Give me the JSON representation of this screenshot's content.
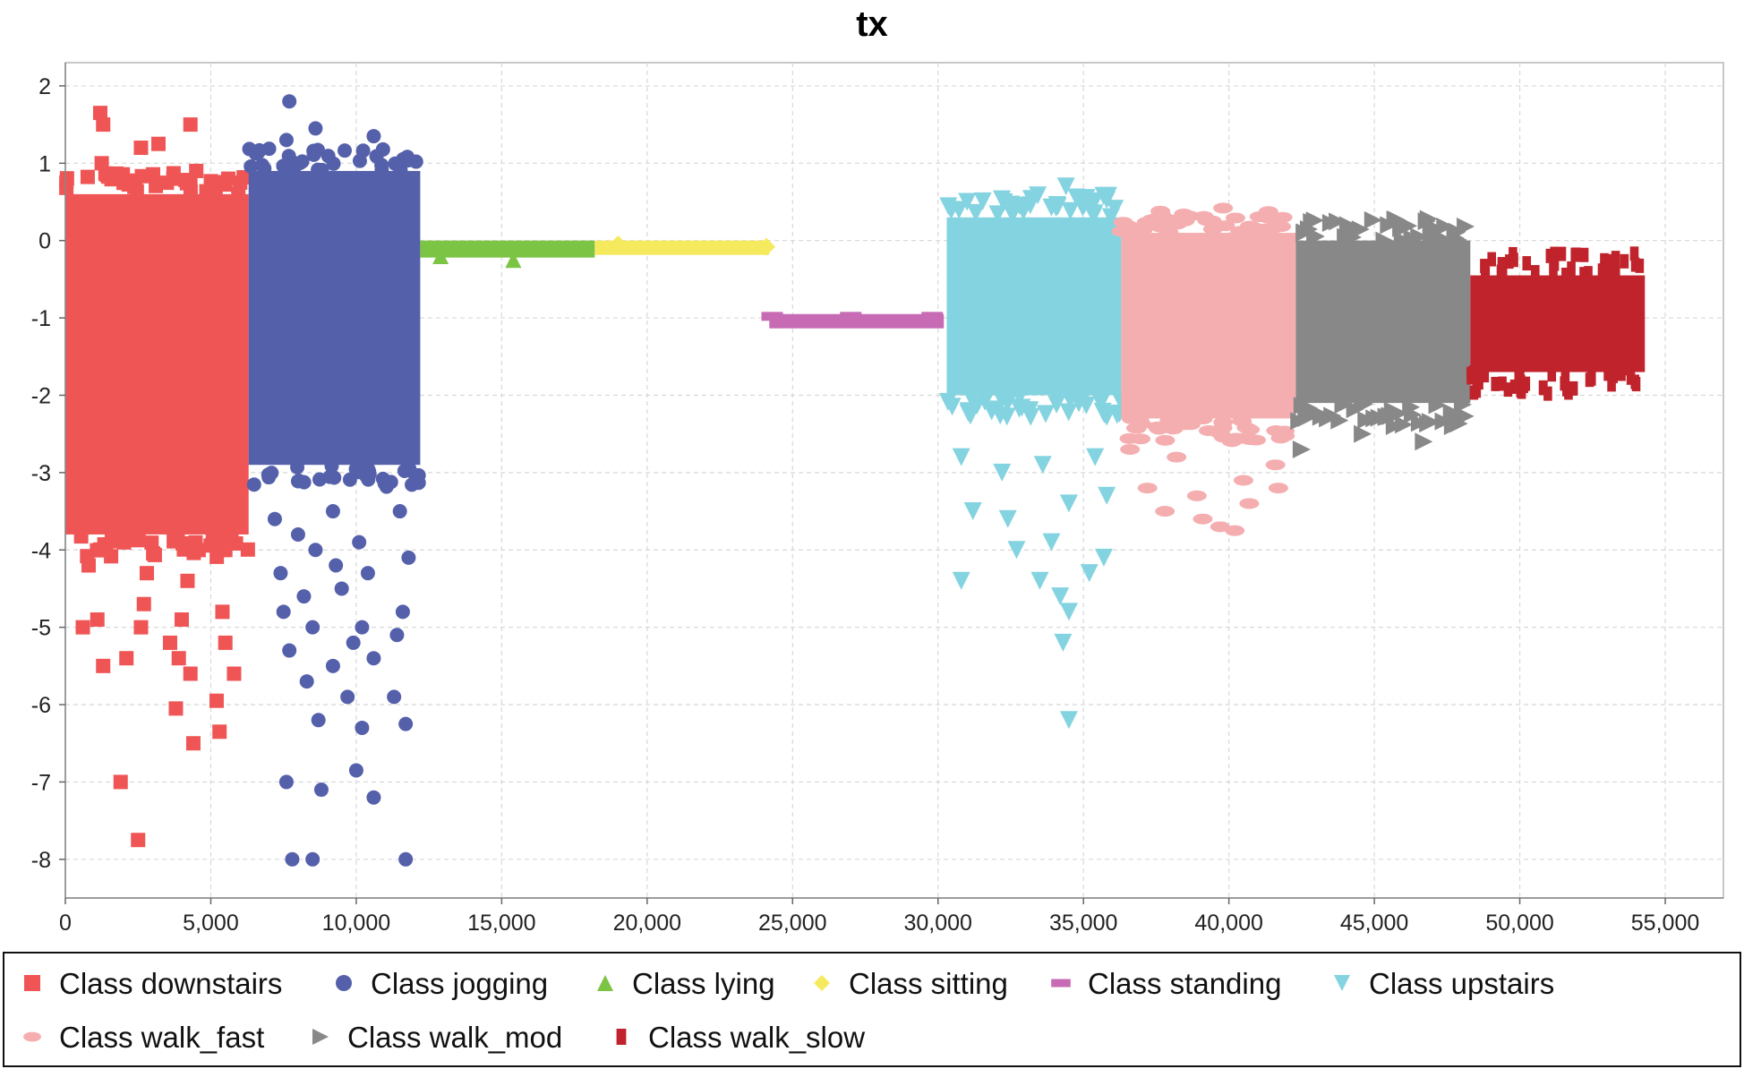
{
  "chart_data": {
    "type": "scatter",
    "title": "tx",
    "xlabel": "",
    "ylabel": "",
    "xlim": [
      0,
      57000
    ],
    "ylim": [
      -8.5,
      2.3
    ],
    "grid": true,
    "legend_position": "bottom",
    "x_ticks": [
      0,
      5000,
      10000,
      15000,
      20000,
      25000,
      30000,
      35000,
      40000,
      45000,
      50000,
      55000
    ],
    "x_tick_labels": [
      "0",
      "5,000",
      "10,000",
      "15,000",
      "20,000",
      "25,000",
      "30,000",
      "35,000",
      "40,000",
      "45,000",
      "50,000",
      "55,000"
    ],
    "y_ticks": [
      2,
      1,
      0,
      -1,
      -2,
      -3,
      -4,
      -5,
      -6,
      -7,
      -8
    ],
    "y_tick_labels": [
      "2",
      "1",
      "0",
      "-1",
      "-2",
      "-3",
      "-4",
      "-5",
      "-6",
      "-7",
      "-8"
    ],
    "series": [
      {
        "name": "Class downstairs",
        "color": "#f05555",
        "marker": "square",
        "x_range": [
          0,
          6300
        ],
        "core_range": [
          -3.8,
          0.6
        ],
        "points": [
          [
            1200,
            1.65
          ],
          [
            1300,
            1.5
          ],
          [
            4300,
            1.5
          ],
          [
            1250,
            1.0
          ],
          [
            2600,
            1.2
          ],
          [
            3200,
            1.25
          ],
          [
            4500,
            0.9
          ],
          [
            5600,
            0.8
          ],
          [
            800,
            -4.2
          ],
          [
            1400,
            -4.0
          ],
          [
            2800,
            -4.3
          ],
          [
            4200,
            -4.4
          ],
          [
            5500,
            -4.0
          ],
          [
            600,
            -5.0
          ],
          [
            1100,
            -4.9
          ],
          [
            2700,
            -4.7
          ],
          [
            4000,
            -4.9
          ],
          [
            5400,
            -4.8
          ],
          [
            1300,
            -5.5
          ],
          [
            2100,
            -5.4
          ],
          [
            2600,
            -5.0
          ],
          [
            3600,
            -5.2
          ],
          [
            3900,
            -5.4
          ],
          [
            4300,
            -5.6
          ],
          [
            5500,
            -5.2
          ],
          [
            5800,
            -5.6
          ],
          [
            3800,
            -6.05
          ],
          [
            4400,
            -6.5
          ],
          [
            5200,
            -5.95
          ],
          [
            5300,
            -6.35
          ],
          [
            1900,
            -7.0
          ],
          [
            2500,
            -7.75
          ]
        ]
      },
      {
        "name": "Class jogging",
        "color": "#5560ab",
        "marker": "circle",
        "x_range": [
          6300,
          12200
        ],
        "core_range": [
          -2.9,
          0.9
        ],
        "points": [
          [
            7700,
            1.8
          ],
          [
            8600,
            1.45
          ],
          [
            10600,
            1.35
          ],
          [
            7600,
            1.3
          ],
          [
            11700,
            1.05
          ],
          [
            6800,
            0.5
          ],
          [
            7200,
            -3.6
          ],
          [
            8000,
            -3.8
          ],
          [
            9200,
            -3.5
          ],
          [
            10100,
            -3.9
          ],
          [
            11500,
            -3.5
          ],
          [
            7400,
            -4.3
          ],
          [
            8600,
            -4.0
          ],
          [
            9300,
            -4.2
          ],
          [
            10400,
            -4.3
          ],
          [
            11800,
            -4.1
          ],
          [
            7500,
            -4.8
          ],
          [
            8200,
            -4.6
          ],
          [
            9500,
            -4.5
          ],
          [
            10200,
            -5.0
          ],
          [
            11600,
            -4.8
          ],
          [
            7700,
            -5.3
          ],
          [
            8500,
            -5.0
          ],
          [
            9900,
            -5.2
          ],
          [
            11400,
            -5.1
          ],
          [
            8300,
            -5.7
          ],
          [
            9200,
            -5.5
          ],
          [
            10600,
            -5.4
          ],
          [
            11300,
            -5.9
          ],
          [
            8700,
            -6.2
          ],
          [
            9700,
            -5.9
          ],
          [
            10200,
            -6.3
          ],
          [
            11700,
            -6.25
          ],
          [
            7600,
            -7.0
          ],
          [
            8800,
            -7.1
          ],
          [
            10000,
            -6.85
          ],
          [
            10600,
            -7.2
          ],
          [
            7800,
            -8.0
          ],
          [
            8500,
            -8.0
          ],
          [
            11700,
            -8.0
          ]
        ]
      },
      {
        "name": "Class lying",
        "color": "#7cc444",
        "marker": "triangle-up",
        "x_range": [
          12200,
          18200
        ],
        "core_range": [
          -0.22,
          0.0
        ],
        "points": [
          [
            15400,
            -0.25
          ],
          [
            12900,
            -0.2
          ],
          [
            14300,
            -0.1
          ]
        ]
      },
      {
        "name": "Class sitting",
        "color": "#f5ea5e",
        "marker": "diamond",
        "x_range": [
          18200,
          24200
        ],
        "core_range": [
          -0.18,
          0.0
        ],
        "points": [
          [
            24100,
            -0.08
          ],
          [
            19000,
            -0.05
          ]
        ]
      },
      {
        "name": "Class standing",
        "color": "#c76bb5",
        "marker": "rect",
        "x_range": [
          24200,
          30200
        ],
        "core_range": [
          -1.02,
          -0.95
        ],
        "points": [
          [
            24300,
            -0.98
          ],
          [
            27000,
            -0.98
          ],
          [
            29800,
            -0.98
          ]
        ]
      },
      {
        "name": "Class upstairs",
        "color": "#84d3e0",
        "marker": "triangle-down",
        "x_range": [
          30300,
          36300
        ],
        "core_range": [
          -2.0,
          0.3
        ],
        "points": [
          [
            34400,
            0.7
          ],
          [
            31000,
            0.5
          ],
          [
            32800,
            0.45
          ],
          [
            35100,
            0.55
          ],
          [
            30800,
            -2.8
          ],
          [
            32200,
            -3.0
          ],
          [
            33600,
            -2.9
          ],
          [
            35400,
            -2.8
          ],
          [
            31200,
            -3.5
          ],
          [
            32400,
            -3.6
          ],
          [
            34500,
            -3.4
          ],
          [
            35800,
            -3.3
          ],
          [
            32700,
            -4.0
          ],
          [
            33900,
            -3.9
          ],
          [
            35700,
            -4.1
          ],
          [
            30800,
            -4.4
          ],
          [
            33500,
            -4.4
          ],
          [
            35200,
            -4.3
          ],
          [
            34200,
            -4.6
          ],
          [
            34500,
            -4.8
          ],
          [
            34300,
            -5.2
          ],
          [
            34500,
            -6.2
          ]
        ]
      },
      {
        "name": "Class walk_fast",
        "color": "#f5aeb0",
        "marker": "ellipse",
        "x_range": [
          36300,
          42300
        ],
        "core_range": [
          -2.3,
          0.1
        ],
        "points": [
          [
            39800,
            0.42
          ],
          [
            37600,
            0.2
          ],
          [
            41200,
            0.15
          ],
          [
            36600,
            -2.7
          ],
          [
            38200,
            -2.8
          ],
          [
            40100,
            -2.6
          ],
          [
            41600,
            -2.9
          ],
          [
            37200,
            -3.2
          ],
          [
            38900,
            -3.3
          ],
          [
            40500,
            -3.1
          ],
          [
            41700,
            -3.2
          ],
          [
            37800,
            -3.5
          ],
          [
            39100,
            -3.6
          ],
          [
            40700,
            -3.4
          ],
          [
            39700,
            -3.7
          ],
          [
            40200,
            -3.75
          ]
        ]
      },
      {
        "name": "Class walk_mod",
        "color": "#888888",
        "marker": "triangle-right",
        "x_range": [
          42300,
          48300
        ],
        "core_range": [
          -2.1,
          0.0
        ],
        "points": [
          [
            42600,
            0.1
          ],
          [
            44100,
            0.2
          ],
          [
            45500,
            0.2
          ],
          [
            46800,
            0.25
          ],
          [
            47800,
            0.1
          ],
          [
            42500,
            -2.7
          ],
          [
            43400,
            -2.3
          ],
          [
            44600,
            -2.5
          ],
          [
            45700,
            -2.4
          ],
          [
            46700,
            -2.6
          ],
          [
            47700,
            -2.4
          ]
        ]
      },
      {
        "name": "Class walk_slow",
        "color": "#c0232b",
        "marker": "small-rect",
        "x_range": [
          48300,
          54300
        ],
        "core_range": [
          -1.7,
          -0.45
        ],
        "points": [
          [
            49800,
            -0.25
          ],
          [
            51200,
            -0.3
          ],
          [
            53300,
            -0.4
          ],
          [
            49400,
            -1.85
          ],
          [
            50800,
            -1.9
          ],
          [
            52400,
            -1.8
          ],
          [
            53700,
            -1.65
          ]
        ]
      }
    ]
  }
}
